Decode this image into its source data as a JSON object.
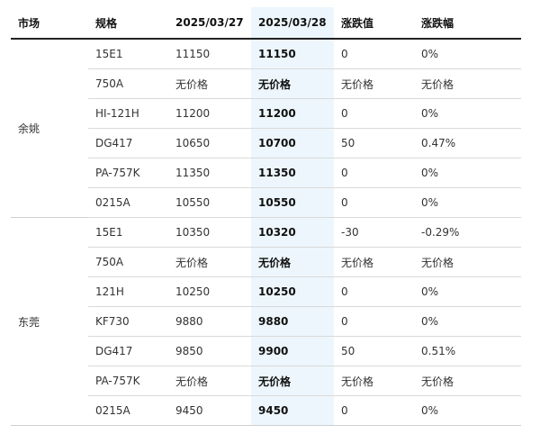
{
  "headers": [
    "市场",
    "规格",
    "2025/03/27",
    "2025/03/28",
    "涨跌值",
    "涨跌幅"
  ],
  "groups": [
    {
      "market": "余姚",
      "rows": [
        {
          "spec": "15E1",
          "d1": "11150",
          "d2": "11150",
          "chg": "0",
          "pct": "0%"
        },
        {
          "spec": "750A",
          "d1": "无价格",
          "d2": "无价格",
          "chg": "无价格",
          "pct": "无价格"
        },
        {
          "spec": "HI-121H",
          "d1": "11200",
          "d2": "11200",
          "chg": "0",
          "pct": "0%"
        },
        {
          "spec": "DG417",
          "d1": "10650",
          "d2": "10700",
          "chg": "50",
          "pct": "0.47%"
        },
        {
          "spec": "PA-757K",
          "d1": "11350",
          "d2": "11350",
          "chg": "0",
          "pct": "0%"
        },
        {
          "spec": "0215A",
          "d1": "10550",
          "d2": "10550",
          "chg": "0",
          "pct": "0%"
        }
      ]
    },
    {
      "market": "东莞",
      "rows": [
        {
          "spec": "15E1",
          "d1": "10350",
          "d2": "10320",
          "chg": "-30",
          "pct": "-0.29%"
        },
        {
          "spec": "750A",
          "d1": "无价格",
          "d2": "无价格",
          "chg": "无价格",
          "pct": "无价格"
        },
        {
          "spec": "121H",
          "d1": "10250",
          "d2": "10250",
          "chg": "0",
          "pct": "0%"
        },
        {
          "spec": "KF730",
          "d1": "9880",
          "d2": "9880",
          "chg": "0",
          "pct": "0%"
        },
        {
          "spec": "DG417",
          "d1": "9850",
          "d2": "9900",
          "chg": "50",
          "pct": "0.51%"
        },
        {
          "spec": "PA-757K",
          "d1": "无价格",
          "d2": "无价格",
          "chg": "无价格",
          "pct": "无价格"
        },
        {
          "spec": "0215A",
          "d1": "9450",
          "d2": "9450",
          "chg": "0",
          "pct": "0%"
        }
      ]
    }
  ]
}
